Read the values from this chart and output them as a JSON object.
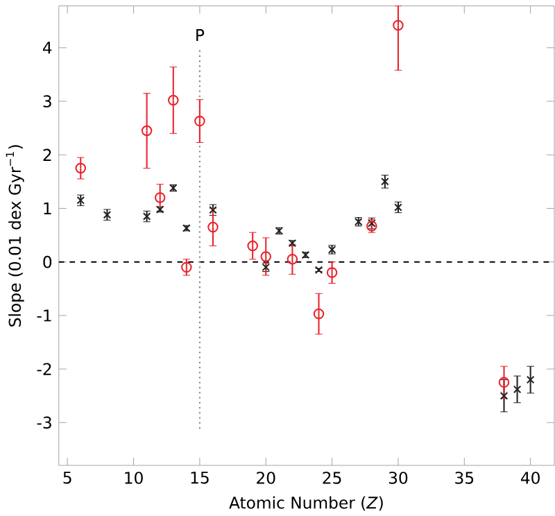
{
  "chart_data": {
    "type": "scatter",
    "xlabel": "Atomic Number (*Z*)",
    "ylabel": "Slope (0.01 dex Gyr$^{−1}$)",
    "xlim": [
      4.35,
      41.8
    ],
    "ylim": [
      -3.8,
      4.78
    ],
    "xticks": [
      5,
      10,
      15,
      20,
      25,
      30,
      35,
      40
    ],
    "yticks": [
      -3,
      -2,
      -1,
      0,
      1,
      2,
      3,
      4
    ],
    "grid": false,
    "ref_lines": [
      {
        "axis": "y",
        "value": 0,
        "line_style": "dashed",
        "color": "#000000"
      },
      {
        "axis": "x",
        "value": 15,
        "label": "P",
        "line_style": "dotted",
        "color": "#808080"
      }
    ],
    "series": [
      {
        "color": "#222222",
        "marker": "cross",
        "x": [
          6,
          8,
          11,
          12,
          13,
          14,
          16,
          20,
          21,
          22,
          23,
          24,
          25,
          27,
          28,
          29,
          30,
          38,
          39,
          40
        ],
        "values": [
          1.15,
          0.88,
          0.85,
          0.98,
          1.38,
          0.63,
          0.97,
          -0.1,
          0.58,
          0.35,
          0.13,
          -0.15,
          0.23,
          0.75,
          0.72,
          1.5,
          1.02,
          -2.5,
          -2.38,
          -2.2
        ],
        "errors": [
          0.1,
          0.1,
          0.1,
          0.05,
          0.06,
          0.05,
          0.1,
          0.08,
          0.06,
          0.05,
          0.05,
          0.03,
          0.08,
          0.08,
          0.1,
          0.12,
          0.1,
          0.3,
          0.25,
          0.25
        ]
      },
      {
        "color": "#e8242c",
        "marker": "circle",
        "x": [
          6,
          11,
          12,
          13,
          14,
          15,
          16,
          19,
          20,
          22,
          24,
          25,
          28,
          30,
          38
        ],
        "values": [
          1.75,
          2.45,
          1.2,
          3.02,
          -0.1,
          2.63,
          0.65,
          0.3,
          0.1,
          0.05,
          -0.97,
          -0.2,
          0.67,
          4.42,
          -2.25
        ],
        "errors": [
          0.2,
          0.7,
          0.25,
          0.62,
          0.15,
          0.4,
          0.35,
          0.25,
          0.35,
          0.28,
          0.38,
          0.2,
          0.12,
          [
            3.58,
            4.78
          ],
          0.3
        ]
      }
    ]
  }
}
